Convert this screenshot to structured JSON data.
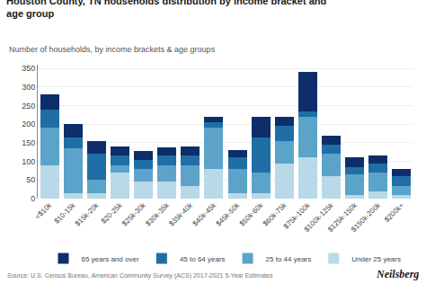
{
  "chart_data": {
    "type": "bar",
    "stacked": true,
    "title": "Houston County, TN households distribution by income bracket and\nage group",
    "subtitle": "Number of households, by income brackets & age groups",
    "annotations": [
      "Source: U.S. Census Bureau, American Community Survey (ACS) 2017-2021 5-Year Estimates",
      "Neilsberg"
    ],
    "categories": [
      "<$10k",
      "$10-15k",
      "$15k-20k",
      "$20-25k",
      "$25k-30k",
      "$30k-35k",
      "$35k-40k",
      "$40k-45k",
      "$45k-50k",
      "$50k-60k",
      "$60k-75k",
      "$75k-100k",
      "$100k-125k",
      "$125k-150k",
      "$150k-200k",
      "$200k+"
    ],
    "series": [
      {
        "name": "Under 25 years",
        "color": "#b8d9e8",
        "values": [
          90,
          15,
          15,
          70,
          45,
          45,
          35,
          80,
          15,
          15,
          95,
          110,
          60,
          10,
          20,
          10
        ]
      },
      {
        "name": "25 to 44 years",
        "color": "#5ba3c9",
        "values": [
          100,
          120,
          35,
          20,
          35,
          45,
          55,
          110,
          65,
          55,
          60,
          110,
          60,
          55,
          50,
          25
        ]
      },
      {
        "name": "45 to 64 years",
        "color": "#1f6fa6",
        "values": [
          50,
          30,
          70,
          25,
          25,
          25,
          25,
          15,
          30,
          95,
          40,
          15,
          25,
          20,
          25,
          25
        ]
      },
      {
        "name": "65 years and over",
        "color": "#0d2d6b",
        "values": [
          40,
          35,
          35,
          25,
          22,
          22,
          25,
          15,
          20,
          55,
          25,
          105,
          25,
          25,
          22,
          20
        ]
      }
    ],
    "ylim": [
      0,
      360
    ],
    "yticks": [
      0,
      50,
      100,
      150,
      200,
      250,
      300,
      350
    ],
    "grid": true,
    "legend": "bottom"
  }
}
